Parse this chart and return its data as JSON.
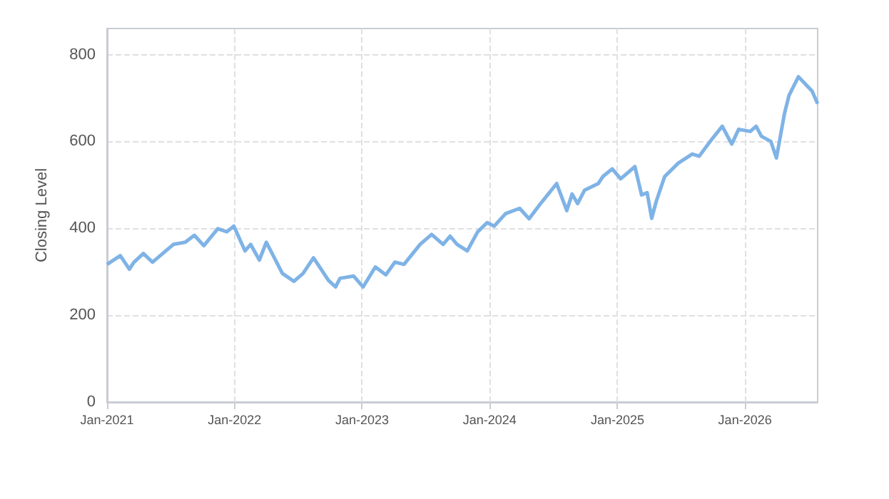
{
  "chart_data": {
    "type": "line",
    "ylabel": "Closing Level",
    "x": [
      "2021-01-01",
      "2021-02-08",
      "2021-03-06",
      "2021-03-19",
      "2021-04-15",
      "2021-05-11",
      "2021-07-10",
      "2021-08-13",
      "2021-09-08",
      "2021-10-05",
      "2021-11-14",
      "2021-12-10",
      "2021-12-30",
      "2022-01-31",
      "2022-02-16",
      "2022-03-13",
      "2022-04-02",
      "2022-05-18",
      "2022-06-20",
      "2022-07-16",
      "2022-08-15",
      "2022-09-27",
      "2022-10-17",
      "2022-10-30",
      "2022-12-08",
      "2023-01-04",
      "2023-02-08",
      "2023-03-10",
      "2023-04-05",
      "2023-05-01",
      "2023-06-16",
      "2023-07-19",
      "2023-08-21",
      "2023-09-10",
      "2023-09-30",
      "2023-10-29",
      "2023-11-28",
      "2023-12-25",
      "2024-01-14",
      "2024-02-16",
      "2024-03-27",
      "2024-04-23",
      "2024-05-26",
      "2024-07-11",
      "2024-08-09",
      "2024-08-24",
      "2024-09-09",
      "2024-09-29",
      "2024-11-07",
      "2024-11-20",
      "2024-12-17",
      "2025-01-05",
      "2025-01-10",
      "2025-02-20",
      "2025-03-11",
      "2025-03-27",
      "2025-04-09",
      "2025-04-22",
      "2025-05-16",
      "2025-06-24",
      "2025-08-03",
      "2025-08-23",
      "2025-09-25",
      "2025-10-28",
      "2025-11-24",
      "2025-12-14",
      "2026-01-16",
      "2026-02-02",
      "2026-02-17",
      "2026-03-16",
      "2026-04-01",
      "2026-04-24",
      "2026-05-07",
      "2026-06-03",
      "2026-06-23",
      "2026-07-12",
      "2026-07-28"
    ],
    "series": [
      {
        "color": "#7fb3e6",
        "values": [
          317,
          337,
          306,
          322,
          342,
          322,
          363,
          368,
          384,
          360,
          399,
          392,
          405,
          348,
          363,
          327,
          368,
          296,
          278,
          296,
          332,
          280,
          265,
          285,
          290,
          265,
          311,
          293,
          322,
          317,
          363,
          386,
          363,
          382,
          363,
          348,
          392,
          413,
          405,
          434,
          446,
          422,
          457,
          503,
          441,
          479,
          457,
          488,
          503,
          519,
          537,
          519,
          514,
          542,
          477,
          482,
          423,
          462,
          519,
          550,
          571,
          566,
          602,
          635,
          594,
          628,
          623,
          635,
          612,
          600,
          562,
          664,
          706,
          749,
          732,
          716,
          687
        ]
      }
    ],
    "xlim": [
      "2021-01-01",
      "2026-07-28"
    ],
    "xticks": [
      {
        "value": "2021-01-01",
        "label": "Jan-2021"
      },
      {
        "value": "2022-01-01",
        "label": "Jan-2022"
      },
      {
        "value": "2023-01-01",
        "label": "Jan-2023"
      },
      {
        "value": "2024-01-01",
        "label": "Jan-2024"
      },
      {
        "value": "2025-01-01",
        "label": "Jan-2025"
      },
      {
        "value": "2026-01-01",
        "label": "Jan-2026"
      }
    ],
    "ylim": [
      0,
      860
    ],
    "yticks": [
      0,
      200,
      400,
      600,
      800
    ],
    "grid": true,
    "marker": "none",
    "line_style": "solid"
  }
}
